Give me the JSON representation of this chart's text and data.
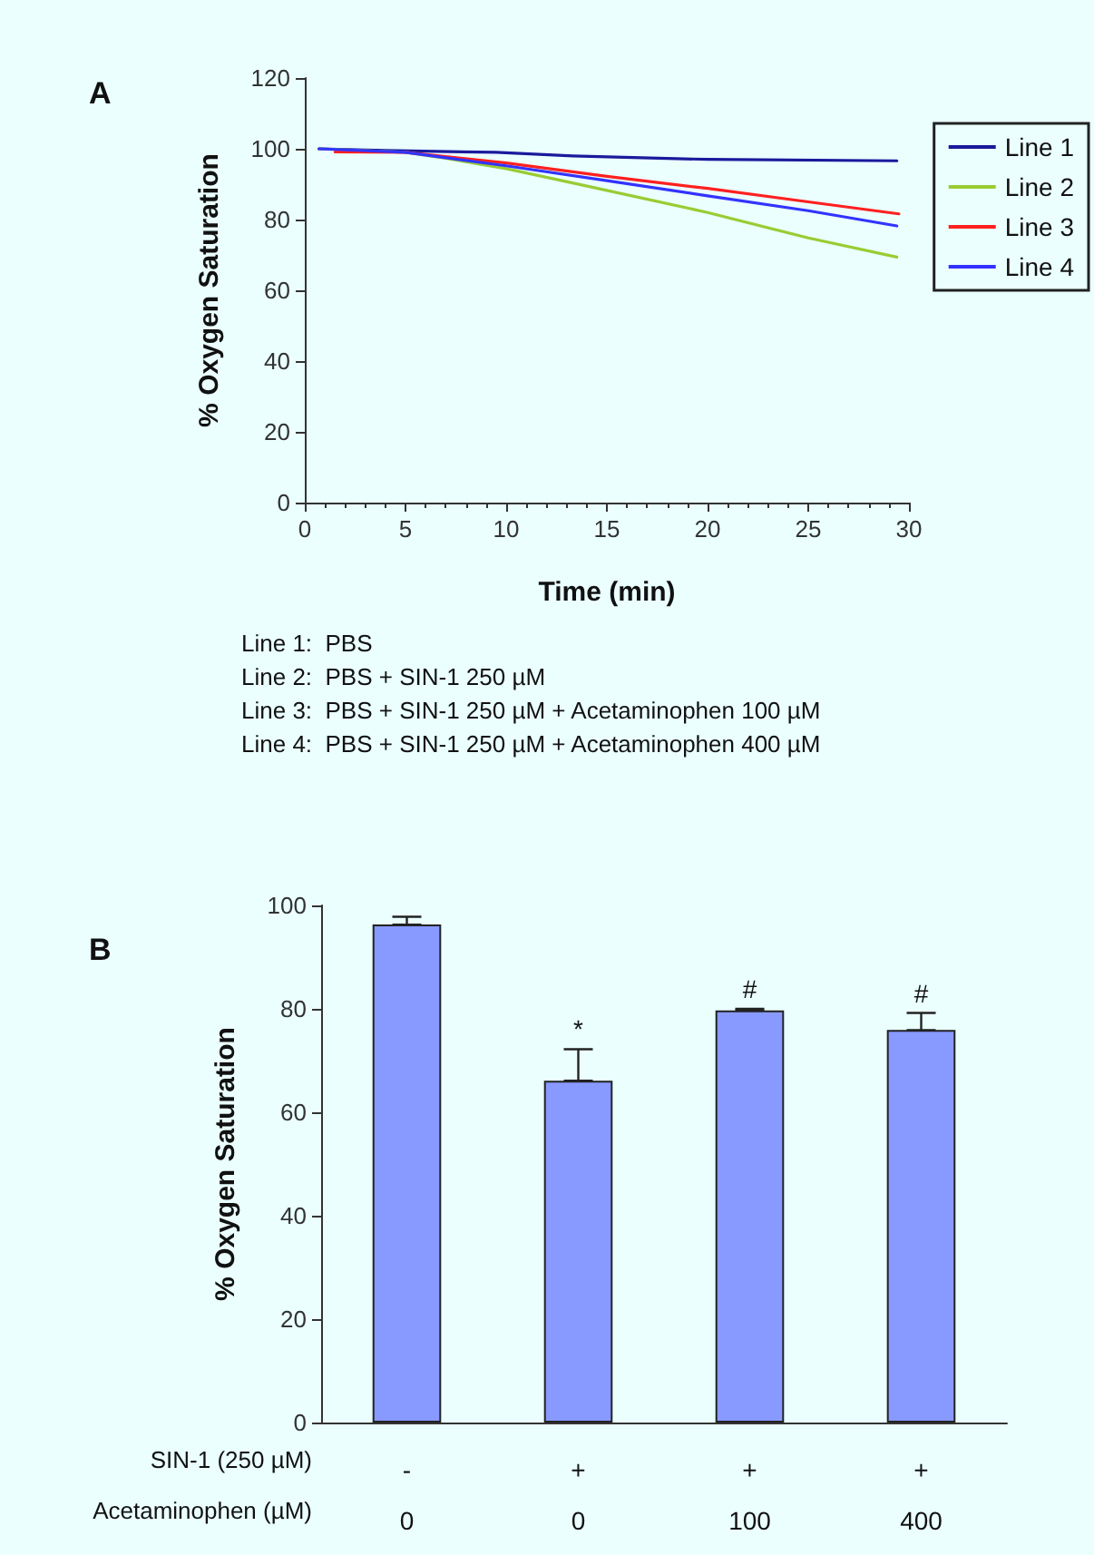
{
  "chart_data": [
    {
      "type": "line",
      "title": "A",
      "xlabel": "Time (min)",
      "ylabel": "% Oxygen Saturation",
      "xlim": [
        0,
        30
      ],
      "xticks": [
        0,
        5,
        10,
        15,
        20,
        25,
        30
      ],
      "ylim": [
        0,
        120
      ],
      "yticks": [
        0,
        20,
        40,
        60,
        80,
        100,
        120
      ],
      "grid": false,
      "legend": "right",
      "marker": "none",
      "line_style": "solid",
      "series": [
        {
          "name": "Line 1",
          "color": "#1a1a9c",
          "x": [
            0.7,
            4,
            9.5,
            13.3,
            20,
            29.4
          ],
          "values": [
            100,
            99.5,
            99,
            98,
            97,
            96.6
          ]
        },
        {
          "name": "Line 2",
          "color": "#99cc33",
          "x": [
            0.7,
            5,
            7,
            10,
            13.5,
            20,
            25,
            29.4
          ],
          "values": [
            100,
            99,
            97.3,
            94.4,
            90.1,
            82,
            74.8,
            69.4
          ]
        },
        {
          "name": "Line 3",
          "color": "#ff2020",
          "x": [
            1.5,
            5,
            10,
            15,
            20,
            25,
            29.5
          ],
          "values": [
            99.1,
            99,
            96,
            92.2,
            88.8,
            85,
            81.6
          ]
        },
        {
          "name": "Line 4",
          "color": "#3333ff",
          "x": [
            0.7,
            5,
            10,
            15,
            20,
            25,
            29.4
          ],
          "values": [
            100,
            99,
            95.2,
            91,
            86.7,
            82.5,
            78.2
          ]
        }
      ],
      "annotations": [
        "Line 1:  PBS",
        "Line 2:  PBS + SIN-1 250 µM",
        "Line 3:  PBS + SIN-1 250 µM + Acetaminophen 100 µM",
        "Line 4:  PBS + SIN-1 250 µM + Acetaminophen 400 µM"
      ]
    },
    {
      "type": "bar",
      "title": "B",
      "ylabel": "% Oxygen Saturation",
      "categories": [
        "-\n0",
        "+\n0",
        "+\n100",
        "+\n400"
      ],
      "ylim": [
        0,
        100
      ],
      "yticks": [
        0,
        20,
        40,
        60,
        80,
        100
      ],
      "grid": false,
      "legend": false,
      "series": [
        {
          "color": "#8899ff",
          "values": [
            96.3,
            66.1,
            79.7,
            75.9
          ],
          "errors": [
            [
              96.3,
              97.8
            ],
            [
              66.1,
              72.2
            ],
            [
              79.7,
              80.0
            ],
            [
              75.9,
              79.2
            ]
          ]
        }
      ],
      "annotations": [
        "SIN-1 (250 µM)",
        "Acetaminophen (µM)",
        {
          "text": "*",
          "x": "+\n0",
          "y": 72.2
        },
        {
          "text": "#",
          "x": "+\n100",
          "y": 80.0
        },
        {
          "text": "#",
          "x": "+\n400",
          "y": 79.2
        }
      ]
    }
  ]
}
